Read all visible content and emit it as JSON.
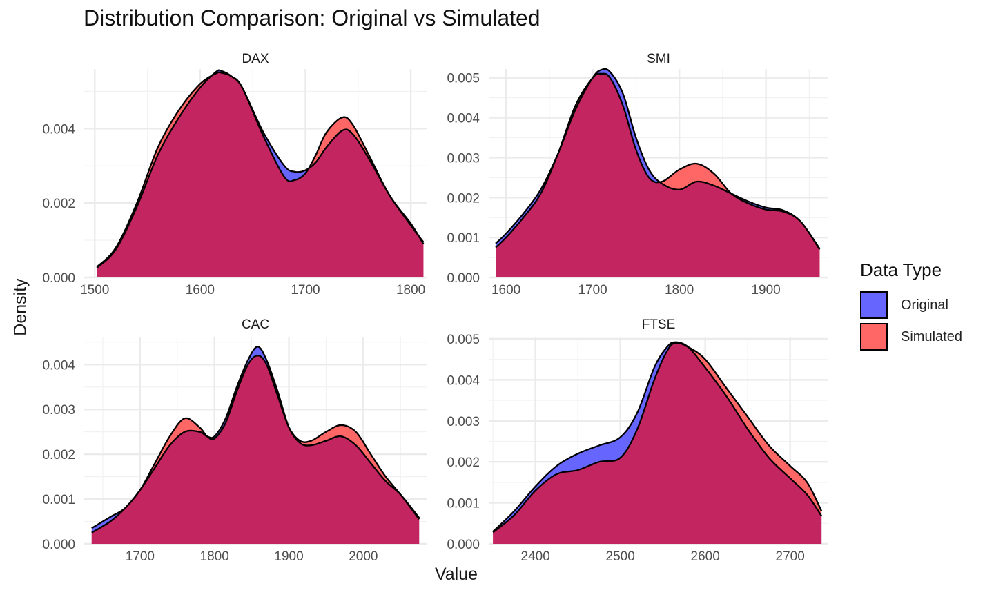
{
  "chart_data": {
    "type": "area",
    "title": "Distribution Comparison: Original vs Simulated",
    "xlabel": "Value",
    "ylabel": "Density",
    "legend": {
      "title": "Data Type",
      "position": "right",
      "entries": [
        {
          "name": "Original",
          "color": "#6666ff"
        },
        {
          "name": "Simulated",
          "color": "#ff6666"
        }
      ]
    },
    "overlap_color": "#c2255f",
    "grid": true,
    "panels": [
      {
        "name": "DAX",
        "xlim": [
          1490,
          1815
        ],
        "ylim": [
          0,
          0.0056
        ],
        "xticks": [
          1500,
          1600,
          1700,
          1800
        ],
        "yticks": [
          0,
          0.002,
          0.004
        ],
        "ytick_labels": [
          "0.000",
          "0.002",
          "0.004"
        ],
        "series": [
          {
            "name": "Original",
            "x": [
              1502,
              1520,
              1540,
              1560,
              1580,
              1600,
              1615,
              1620,
              1630,
              1640,
              1660,
              1680,
              1690,
              1700,
              1710,
              1720,
              1735,
              1745,
              1760,
              1780,
              1800,
              1812
            ],
            "y": [
              0.00026,
              0.00075,
              0.0019,
              0.0033,
              0.0043,
              0.0051,
              0.00552,
              0.00555,
              0.0054,
              0.0051,
              0.0039,
              0.003,
              0.00284,
              0.00288,
              0.0031,
              0.0035,
              0.00395,
              0.00385,
              0.0032,
              0.0022,
              0.0014,
              0.00095
            ]
          },
          {
            "name": "Simulated",
            "x": [
              1502,
              1520,
              1540,
              1560,
              1580,
              1600,
              1615,
              1620,
              1630,
              1640,
              1660,
              1680,
              1690,
              1700,
              1710,
              1720,
              1735,
              1745,
              1760,
              1780,
              1800,
              1812
            ],
            "y": [
              0.00028,
              0.0008,
              0.002,
              0.0035,
              0.0045,
              0.0052,
              0.00548,
              0.0055,
              0.0054,
              0.0051,
              0.0038,
              0.0027,
              0.00262,
              0.0028,
              0.0033,
              0.0039,
              0.0043,
              0.0041,
              0.0033,
              0.0022,
              0.00145,
              0.0009
            ]
          }
        ]
      },
      {
        "name": "SMI",
        "xlim": [
          1580,
          1972
        ],
        "ylim": [
          0,
          0.00522
        ],
        "xticks": [
          1600,
          1700,
          1800,
          1900
        ],
        "yticks": [
          0,
          0.001,
          0.002,
          0.003,
          0.004,
          0.005
        ],
        "ytick_labels": [
          "0.000",
          "0.001",
          "0.002",
          "0.003",
          "0.004",
          "0.005"
        ],
        "series": [
          {
            "name": "Original",
            "x": [
              1588,
              1600,
              1620,
              1640,
              1660,
              1680,
              1700,
              1710,
              1720,
              1735,
              1750,
              1765,
              1780,
              1800,
              1820,
              1840,
              1860,
              1880,
              1900,
              1920,
              1940,
              1962
            ],
            "y": [
              0.00085,
              0.0011,
              0.0016,
              0.0022,
              0.0031,
              0.0042,
              0.005,
              0.0052,
              0.00515,
              0.0046,
              0.0035,
              0.0027,
              0.00235,
              0.0022,
              0.0024,
              0.0023,
              0.0021,
              0.0019,
              0.00175,
              0.00168,
              0.0014,
              0.00072
            ]
          },
          {
            "name": "Simulated",
            "x": [
              1588,
              1600,
              1620,
              1640,
              1660,
              1680,
              1700,
              1710,
              1720,
              1735,
              1750,
              1765,
              1780,
              1800,
              1820,
              1840,
              1860,
              1880,
              1900,
              1920,
              1940,
              1962
            ],
            "y": [
              0.00075,
              0.001,
              0.0015,
              0.0021,
              0.0031,
              0.0043,
              0.005,
              0.0051,
              0.005,
              0.0043,
              0.0032,
              0.0025,
              0.0024,
              0.0027,
              0.00285,
              0.0026,
              0.0021,
              0.00185,
              0.0017,
              0.00165,
              0.0014,
              0.0007
            ]
          }
        ]
      },
      {
        "name": "CAC",
        "xlim": [
          1625,
          2085
        ],
        "ylim": [
          0,
          0.00462
        ],
        "xticks": [
          1700,
          1800,
          1900,
          2000
        ],
        "yticks": [
          0,
          0.001,
          0.002,
          0.003,
          0.004
        ],
        "ytick_labels": [
          "0.000",
          "0.001",
          "0.002",
          "0.003",
          "0.004"
        ],
        "series": [
          {
            "name": "Original",
            "x": [
              1635,
              1660,
              1680,
              1700,
              1720,
              1740,
              1760,
              1780,
              1790,
              1800,
              1815,
              1830,
              1845,
              1858,
              1870,
              1885,
              1900,
              1915,
              1930,
              1950,
              1970,
              1990,
              2010,
              2030,
              2050,
              2075
            ],
            "y": [
              0.00035,
              0.0006,
              0.0008,
              0.0012,
              0.0017,
              0.0022,
              0.0025,
              0.0025,
              0.0024,
              0.0024,
              0.0028,
              0.0035,
              0.0041,
              0.0044,
              0.0041,
              0.0034,
              0.0026,
              0.00225,
              0.0022,
              0.0023,
              0.0024,
              0.0022,
              0.0018,
              0.0014,
              0.0011,
              0.00058
            ]
          },
          {
            "name": "Simulated",
            "x": [
              1635,
              1660,
              1680,
              1700,
              1720,
              1740,
              1760,
              1780,
              1790,
              1800,
              1815,
              1830,
              1845,
              1858,
              1870,
              1885,
              1900,
              1915,
              1930,
              1950,
              1970,
              1990,
              2010,
              2030,
              2050,
              2075
            ],
            "y": [
              0.00025,
              0.0005,
              0.0008,
              0.0012,
              0.0018,
              0.0024,
              0.0028,
              0.0026,
              0.0024,
              0.00235,
              0.0027,
              0.0034,
              0.004,
              0.0042,
              0.004,
              0.0033,
              0.0026,
              0.0023,
              0.0023,
              0.0025,
              0.00265,
              0.0025,
              0.002,
              0.0015,
              0.0011,
              0.00055
            ]
          }
        ]
      },
      {
        "name": "FTSE",
        "xlim": [
          2345,
          2745
        ],
        "ylim": [
          0,
          0.00505
        ],
        "xticks": [
          2400,
          2500,
          2600,
          2700
        ],
        "yticks": [
          0,
          0.001,
          0.002,
          0.003,
          0.004,
          0.005
        ],
        "ytick_labels": [
          "0.000",
          "0.001",
          "0.002",
          "0.003",
          "0.004",
          "0.005"
        ],
        "series": [
          {
            "name": "Original",
            "x": [
              2350,
              2375,
              2400,
              2425,
              2450,
              2475,
              2500,
              2520,
              2540,
              2555,
              2565,
              2580,
              2600,
              2625,
              2650,
              2675,
              2700,
              2720,
              2737
            ],
            "y": [
              0.0003,
              0.0008,
              0.0014,
              0.0019,
              0.0022,
              0.0024,
              0.0026,
              0.0032,
              0.0043,
              0.0048,
              0.00492,
              0.0048,
              0.0043,
              0.0036,
              0.0028,
              0.0021,
              0.0016,
              0.0012,
              0.00068
            ]
          },
          {
            "name": "Simulated",
            "x": [
              2350,
              2375,
              2400,
              2425,
              2450,
              2475,
              2500,
              2520,
              2540,
              2555,
              2565,
              2580,
              2600,
              2625,
              2650,
              2675,
              2700,
              2720,
              2737
            ],
            "y": [
              0.00028,
              0.0007,
              0.0013,
              0.0017,
              0.0018,
              0.002,
              0.0021,
              0.0028,
              0.004,
              0.0047,
              0.0049,
              0.0048,
              0.0045,
              0.0038,
              0.0031,
              0.0024,
              0.0019,
              0.0015,
              0.0008
            ]
          }
        ]
      }
    ]
  }
}
